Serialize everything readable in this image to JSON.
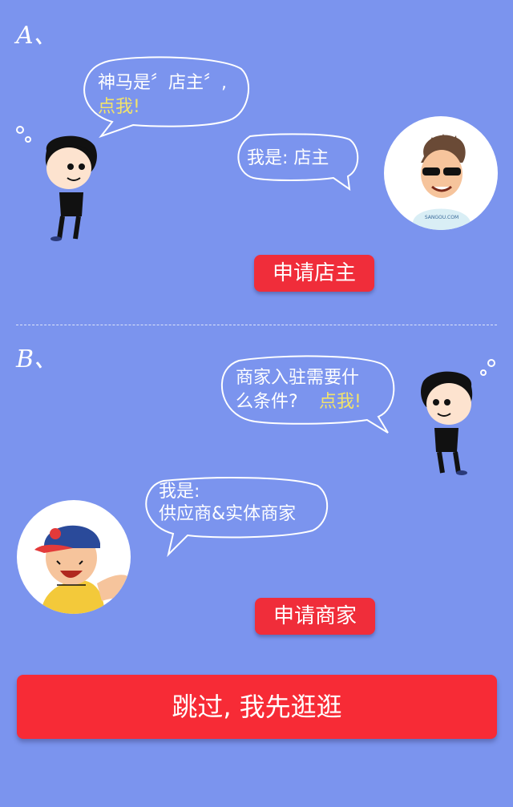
{
  "section_a": {
    "label": "A、",
    "question_line1": "神马是〞店主〞,",
    "question_cta": "点我!",
    "answer": "我是: 店主",
    "apply_button": "申请店主",
    "avatar_shirt_text": "SANGOU.COM"
  },
  "section_b": {
    "label": "B、",
    "question_line1": "商家入驻需要什",
    "question_line2": "么条件?",
    "question_cta": "点我!",
    "answer_line1": "我是:",
    "answer_line2": "供应商&实体商家",
    "apply_button": "申请商家"
  },
  "skip_button": "跳过, 我先逛逛",
  "colors": {
    "background": "#7b94ee",
    "button_red": "#f02d3a",
    "highlight_yellow": "#f2e36a"
  }
}
